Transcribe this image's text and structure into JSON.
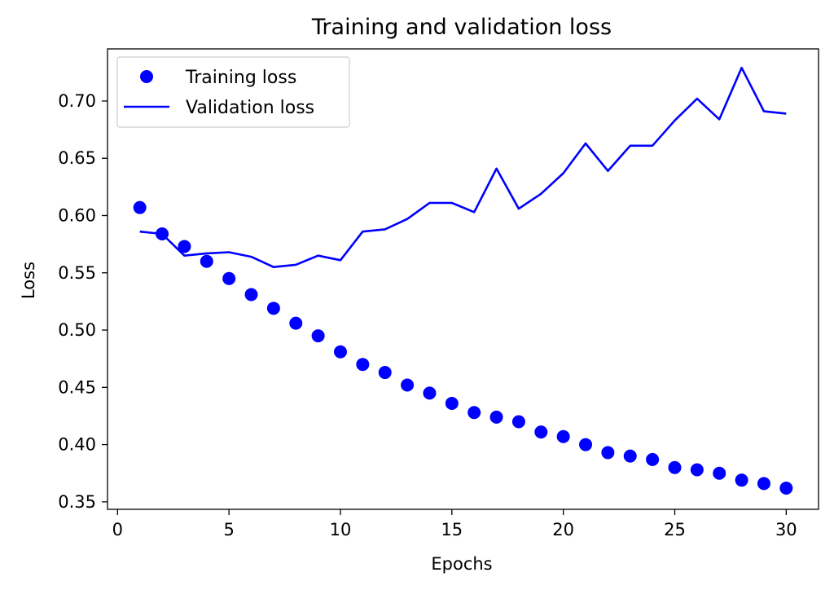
{
  "chart_data": {
    "type": "line",
    "title": "Training and validation loss",
    "xlabel": "Epochs",
    "ylabel": "Loss",
    "xlim": [
      -0.45,
      31.45
    ],
    "ylim": [
      0.3435,
      0.7455
    ],
    "xticks": [
      0,
      5,
      10,
      15,
      20,
      25,
      30
    ],
    "yticks": [
      0.35,
      0.4,
      0.45,
      0.5,
      0.55,
      0.6,
      0.65,
      0.7
    ],
    "xtick_labels": [
      "0",
      "5",
      "10",
      "15",
      "20",
      "25",
      "30"
    ],
    "ytick_labels": [
      "0.35",
      "0.40",
      "0.45",
      "0.50",
      "0.55",
      "0.60",
      "0.65",
      "0.70"
    ],
    "grid": false,
    "legend_position": "upper-left",
    "x": [
      1,
      2,
      3,
      4,
      5,
      6,
      7,
      8,
      9,
      10,
      11,
      12,
      13,
      14,
      15,
      16,
      17,
      18,
      19,
      20,
      21,
      22,
      23,
      24,
      25,
      26,
      27,
      28,
      29,
      30
    ],
    "series": [
      {
        "name": "Training loss",
        "style": "markers",
        "color": "#0000ff",
        "values": [
          0.607,
          0.584,
          0.573,
          0.56,
          0.545,
          0.531,
          0.519,
          0.506,
          0.495,
          0.481,
          0.47,
          0.463,
          0.452,
          0.445,
          0.436,
          0.428,
          0.424,
          0.42,
          0.411,
          0.407,
          0.4,
          0.393,
          0.39,
          0.387,
          0.38,
          0.378,
          0.375,
          0.369,
          0.366,
          0.362
        ]
      },
      {
        "name": "Validation loss",
        "style": "line",
        "color": "#0000ff",
        "values": [
          0.586,
          0.584,
          0.565,
          0.567,
          0.568,
          0.564,
          0.555,
          0.557,
          0.565,
          0.561,
          0.586,
          0.588,
          0.597,
          0.611,
          0.611,
          0.603,
          0.641,
          0.606,
          0.619,
          0.637,
          0.663,
          0.639,
          0.661,
          0.661,
          0.683,
          0.702,
          0.684,
          0.729,
          0.691,
          0.689
        ]
      }
    ]
  }
}
